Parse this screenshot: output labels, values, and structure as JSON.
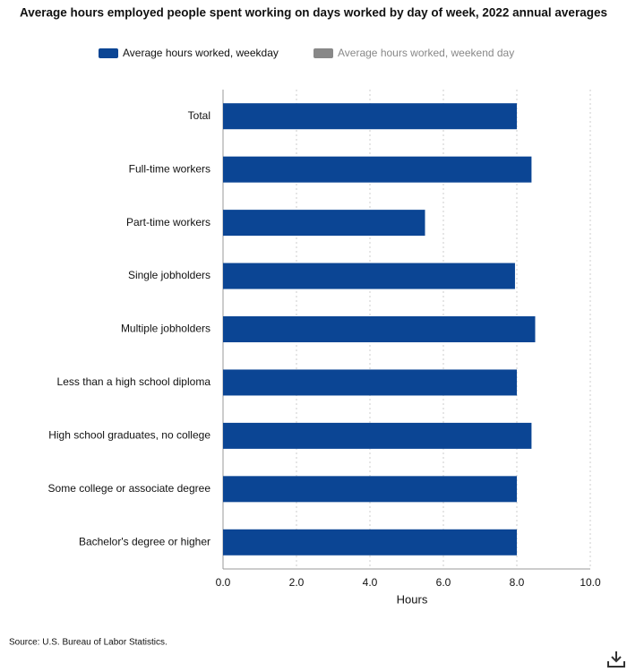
{
  "chart_data": {
    "type": "hbar",
    "title": "Average hours employed people spent working on days worked by day of week, 2022 annual averages",
    "categories": [
      "Total",
      "Full-time workers",
      "Part-time workers",
      "Single jobholders",
      "Multiple jobholders",
      "Less than a high school diploma",
      "High school graduates, no college",
      "Some college or associate degree",
      "Bachelor's degree or higher"
    ],
    "series": [
      {
        "name": "Average hours worked, weekday",
        "color": "#0b4594",
        "values": [
          8.0,
          8.4,
          5.5,
          7.95,
          8.5,
          8.0,
          8.4,
          8.0,
          8.0
        ]
      },
      {
        "name": "Average hours worked, weekend day",
        "color": "#888888",
        "hidden": true,
        "values": [
          null,
          null,
          null,
          null,
          null,
          null,
          null,
          null,
          null
        ]
      }
    ],
    "x_label": "Hours",
    "xlim": [
      0,
      10
    ],
    "xticks": [
      {
        "value": 0,
        "label": "0.0"
      },
      {
        "value": 2,
        "label": "2.0"
      },
      {
        "value": 4,
        "label": "4.0"
      },
      {
        "value": 6,
        "label": "6.0"
      },
      {
        "value": 8,
        "label": "8.0"
      },
      {
        "value": 10,
        "label": "10.0"
      }
    ],
    "grid": true,
    "source": "Source: U.S. Bureau of Labor Statistics."
  }
}
